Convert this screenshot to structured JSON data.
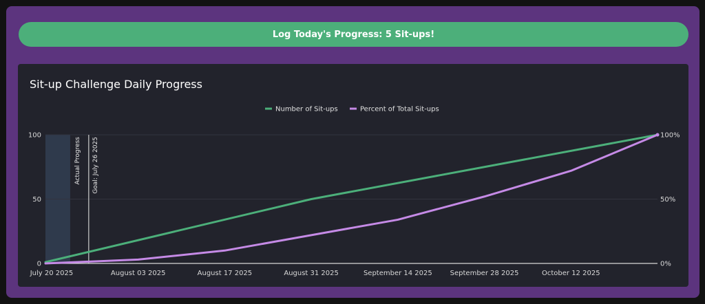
{
  "button": {
    "label": "Log Today's Progress: 5 Sit-ups!"
  },
  "chart_data": {
    "type": "line",
    "title": "Sit-up Challenge Daily Progress",
    "x_range": [
      "2025-07-19",
      "2025-10-26"
    ],
    "x_ticks": [
      {
        "date": "2025-07-20",
        "label": "July 20 2025"
      },
      {
        "date": "2025-08-03",
        "label": "August 03 2025"
      },
      {
        "date": "2025-08-17",
        "label": "August 17 2025"
      },
      {
        "date": "2025-08-31",
        "label": "August 31 2025"
      },
      {
        "date": "2025-09-14",
        "label": "September 14 2025"
      },
      {
        "date": "2025-09-28",
        "label": "September 28 2025"
      },
      {
        "date": "2025-10-12",
        "label": "October 12 2025"
      }
    ],
    "y_left": {
      "range": [
        0,
        100
      ],
      "ticks": [
        {
          "v": 0,
          "label": "0"
        },
        {
          "v": 50,
          "label": "50"
        },
        {
          "v": 100,
          "label": "100"
        }
      ]
    },
    "y_right": {
      "range": [
        0,
        100
      ],
      "ticks": [
        {
          "v": 0,
          "label": "0%"
        },
        {
          "v": 50,
          "label": "50%"
        },
        {
          "v": 100,
          "label": "100%"
        }
      ]
    },
    "grid": true,
    "legend_position": "top-center",
    "series": [
      {
        "name": "Number of Sit-ups",
        "color": "#4caf7a",
        "axis": "left",
        "points": [
          {
            "x": "2025-07-19",
            "y": 1
          },
          {
            "x": "2025-08-31",
            "y": 50
          },
          {
            "x": "2025-10-26",
            "y": 100
          }
        ]
      },
      {
        "name": "Percent of Total Sit-ups",
        "color": "#c58ae6",
        "axis": "right",
        "points": [
          {
            "x": "2025-07-19",
            "y": 0
          },
          {
            "x": "2025-08-03",
            "y": 3
          },
          {
            "x": "2025-08-17",
            "y": 10
          },
          {
            "x": "2025-08-31",
            "y": 22
          },
          {
            "x": "2025-09-14",
            "y": 34
          },
          {
            "x": "2025-09-28",
            "y": 52
          },
          {
            "x": "2025-10-12",
            "y": 72
          },
          {
            "x": "2025-10-26",
            "y": 100
          }
        ]
      }
    ],
    "annotations": [
      {
        "type": "band",
        "label": "Actual Progress",
        "x_start": "2025-07-19",
        "x_end": "2025-07-23"
      },
      {
        "type": "line",
        "label": "Goal: July 26 2025",
        "x": "2025-07-26"
      }
    ]
  }
}
